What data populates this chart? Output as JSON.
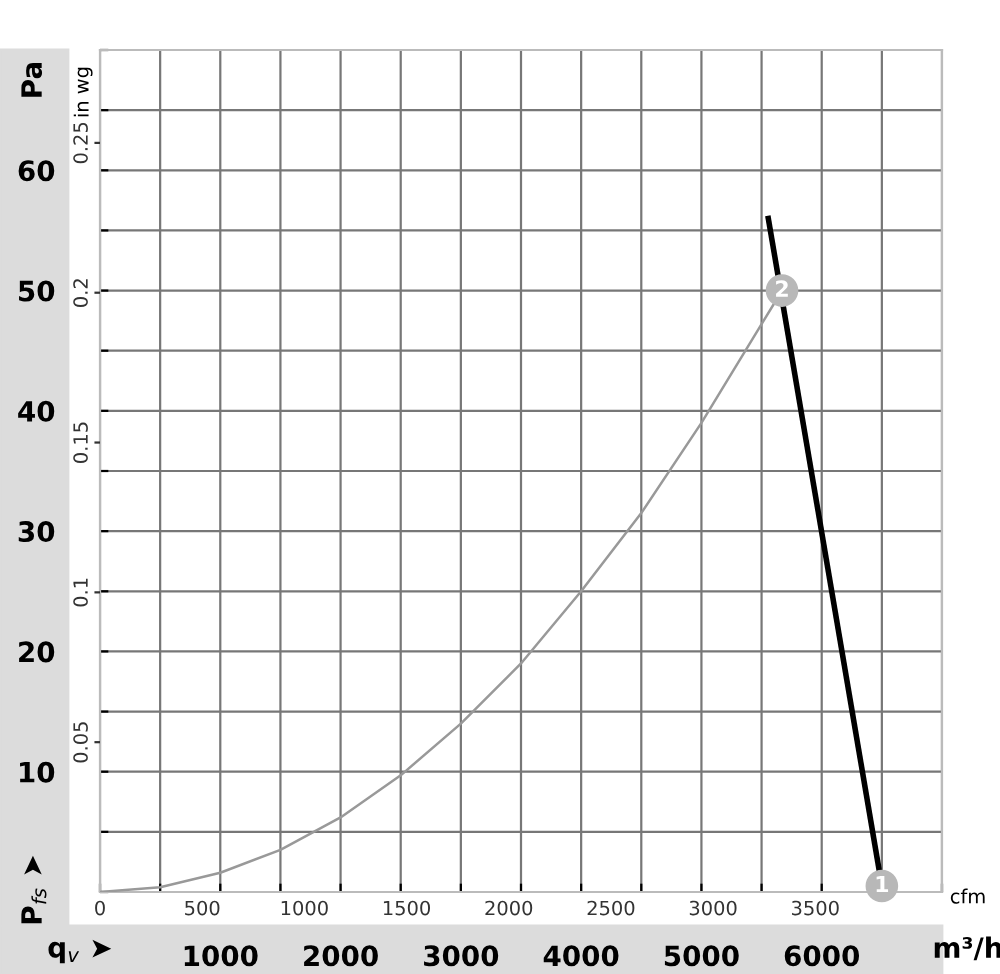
{
  "chart_data": {
    "type": "line",
    "ylabel": "Pa",
    "xlabel": "m³/h",
    "x2label": "cfm",
    "y2label": "in wg",
    "series": [
      {
        "color": "#999999",
        "x": [
          0,
          500,
          1000,
          1500,
          2000,
          2500,
          3000,
          3500,
          4000,
          4500,
          5000,
          5670
        ],
        "values": [
          0,
          0.4,
          1.6,
          3.5,
          6.2,
          9.7,
          14,
          19,
          25,
          31.5,
          39,
          50
        ]
      },
      {
        "color": "#000000",
        "x": [
          5556,
          6500
        ],
        "values": [
          56,
          0.5
        ]
      }
    ],
    "xlim": [
      0,
      7000
    ],
    "xticks": [
      {
        "value": 0,
        "label": null
      },
      {
        "value": 500,
        "label": null
      },
      1000,
      {
        "value": 1500,
        "label": null
      },
      2000,
      {
        "value": 2500,
        "label": null
      },
      3000,
      {
        "value": 3500,
        "label": null
      },
      4000,
      {
        "value": 4500,
        "label": null
      },
      5000,
      {
        "value": 5500,
        "label": null
      },
      6000,
      {
        "value": 6500,
        "label": null
      },
      {
        "value": 7000,
        "label": null
      }
    ],
    "ylim": [
      0,
      70
    ],
    "yticks": [
      {
        "value": 0,
        "label": null
      },
      {
        "value": 5,
        "label": null
      },
      10,
      {
        "value": 15,
        "label": null
      },
      20,
      {
        "value": 25,
        "label": null
      },
      30,
      {
        "value": 35,
        "label": null
      },
      40,
      {
        "value": 45,
        "label": null
      },
      50,
      {
        "value": 55,
        "label": null
      },
      60,
      {
        "value": 65,
        "label": null
      },
      {
        "value": 70,
        "label": null
      }
    ],
    "x2lim": [
      0,
      4120
    ],
    "x2ticks": [
      0,
      500,
      1000,
      1500,
      2000,
      2500,
      3000,
      3500
    ],
    "y2lim": [
      0,
      0.281
    ],
    "y2ticks": [
      0.05,
      0.1,
      0.15,
      0.2,
      0.25
    ],
    "grid": true,
    "line_style": "solid",
    "annotations": [
      {
        "text": "1",
        "x": 6500,
        "y": 0.5
      },
      {
        "text": "2",
        "x": 5670,
        "y": 50
      },
      "P$_{fs}$ ➤",
      "q$_{v}$ ➤"
    ]
  }
}
